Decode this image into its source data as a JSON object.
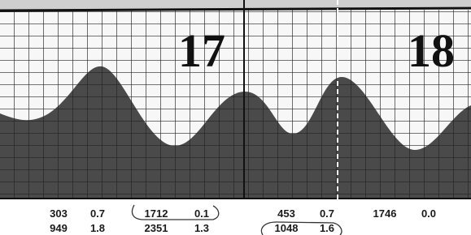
{
  "days": [
    "17",
    "18"
  ],
  "tides": [
    {
      "row1": [
        "303",
        "0.7"
      ],
      "row2": [
        "949",
        "1.8"
      ]
    },
    {
      "row1": [
        "1712",
        "0.1"
      ],
      "row2": [
        "2351",
        "1.3"
      ]
    },
    {
      "row1": [
        "453",
        "0.7"
      ],
      "row2": [
        "1048",
        "1.6"
      ]
    },
    {
      "row1": [
        "1746",
        "0.0"
      ],
      "row2": null
    }
  ]
}
